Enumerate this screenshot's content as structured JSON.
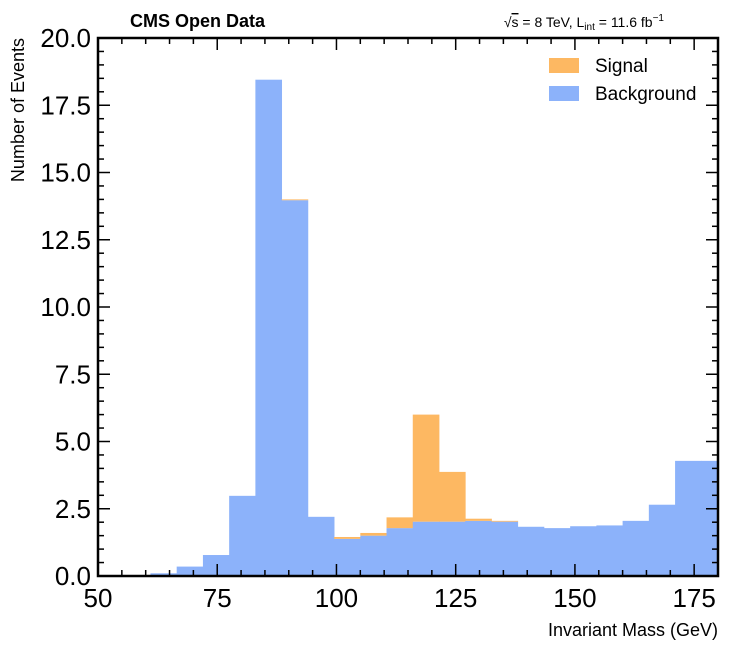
{
  "chart_data": {
    "type": "bar",
    "stacked": true,
    "header_left": "CMS Open Data",
    "header_right": {
      "sqrt": "√",
      "s": "s",
      "energy": " = 8 TeV, L",
      "lumi_sub": "int",
      "lumi": " = 11.6 fb",
      "lumi_sup": "−1"
    },
    "xlabel": "Invariant Mass (GeV)",
    "ylabel": "Number of Events",
    "xlim": [
      50,
      180
    ],
    "ylim": [
      0,
      20
    ],
    "bin_edges": [
      50,
      55.5,
      61,
      66.5,
      72,
      77.5,
      83,
      88.5,
      94,
      99.5,
      105,
      110.5,
      116,
      121.5,
      127,
      132.5,
      138,
      143.5,
      149,
      154.5,
      160,
      165.5,
      171,
      176.5,
      182
    ],
    "x_ticks": [
      50,
      75,
      100,
      125,
      150,
      175
    ],
    "x_tick_labels": [
      "50",
      "75",
      "100",
      "125",
      "150",
      "175"
    ],
    "y_ticks": [
      0,
      2.5,
      5,
      7.5,
      10,
      12.5,
      15,
      17.5,
      20
    ],
    "y_tick_labels": [
      "0.0",
      "2.5",
      "5.0",
      "7.5",
      "10.0",
      "12.5",
      "15.0",
      "17.5",
      "20.0"
    ],
    "series": [
      {
        "name": "Background",
        "color": "#8cb2fa",
        "values": [
          0,
          0,
          0.1,
          0.35,
          0.78,
          2.98,
          18.45,
          13.97,
          2.2,
          1.38,
          1.5,
          1.78,
          2.02,
          2.02,
          2.05,
          2.02,
          1.83,
          1.78,
          1.85,
          1.88,
          2.05,
          2.65,
          4.28,
          4.28
        ]
      },
      {
        "name": "Signal",
        "color": "#fdb862",
        "values": [
          0,
          0,
          0,
          0,
          0,
          0,
          0,
          0.03,
          0,
          0.07,
          0.1,
          0.4,
          3.98,
          1.85,
          0.08,
          0.03,
          0,
          0,
          0,
          0,
          0,
          0,
          0,
          0
        ]
      }
    ],
    "legend_position": "top-right",
    "grid": false
  }
}
